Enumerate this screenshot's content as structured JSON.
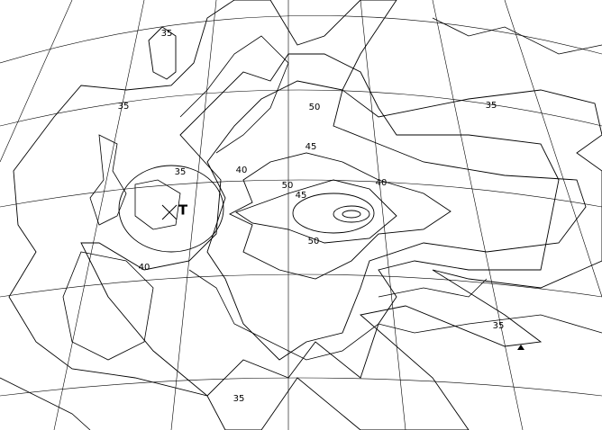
{
  "map": {
    "contour_labels": [
      "35",
      "35",
      "35",
      "35",
      "40",
      "35",
      "35",
      "40",
      "45",
      "50",
      "45",
      "50",
      "40",
      "50"
    ],
    "marker": "T"
  }
}
